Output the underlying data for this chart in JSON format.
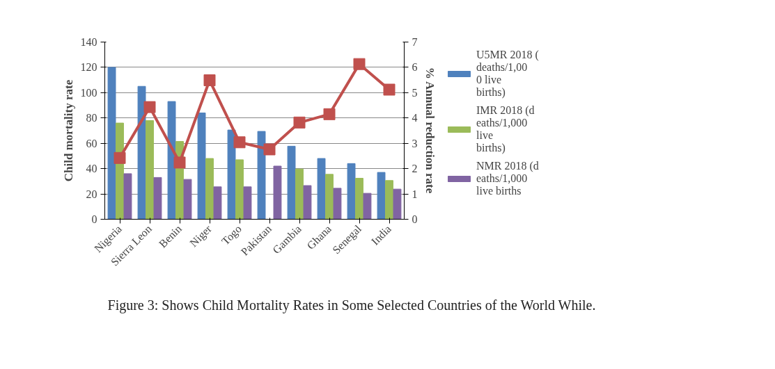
{
  "chart_data": {
    "type": "bar",
    "title": "Figure 3: Shows Child Mortality Rates in Some Selected Countries of the World While.",
    "ylabel": "Child mortality rate",
    "y2label": "% Annual reduction rate",
    "categories": [
      "Nigeria",
      "Sierra Leon",
      "Benin",
      "Niger",
      "Togo",
      "Pakistan",
      "Gambia",
      "Ghana",
      "Senegal",
      "India"
    ],
    "series": [
      {
        "name": "U5MR 2018 (deaths/1,000 live births)",
        "color": "#4f81bd",
        "values": [
          120,
          105,
          93,
          84,
          70.5,
          69.4,
          57.7,
          48,
          44,
          37
        ]
      },
      {
        "name": "IMR 2018 (deaths/1,000 live births)",
        "color": "#9bbb59",
        "values": [
          76,
          78,
          61.5,
          48,
          47,
          null,
          39.7,
          35.5,
          32.4,
          30.6
        ]
      },
      {
        "name": "NMR 2018 (deaths/1,000 live births",
        "color": "#8064a2",
        "values": [
          36,
          33,
          31.5,
          25.6,
          25.6,
          42,
          26.6,
          24.5,
          20.5,
          23.8
        ]
      },
      {
        "type": "line",
        "axis": "y2",
        "color": "#c0504d",
        "marker": "square",
        "values": [
          2.42,
          4.43,
          2.24,
          5.49,
          3.04,
          2.76,
          3.82,
          4.15,
          6.13,
          5.12
        ]
      }
    ],
    "ylim": [
      0,
      140
    ],
    "yticks": [
      0,
      20,
      40,
      60,
      80,
      100,
      120,
      140
    ],
    "y2lim": [
      0,
      7
    ],
    "y2ticks": [
      0,
      1,
      2,
      3,
      4,
      5,
      6,
      7
    ],
    "grid": "y",
    "legend": "right"
  }
}
